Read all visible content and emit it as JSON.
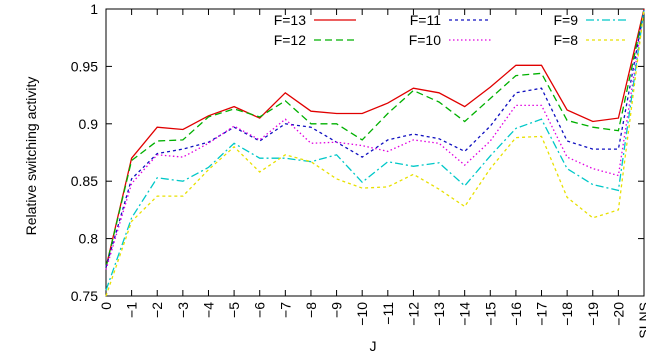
{
  "chart_data": {
    "type": "line",
    "xlabel": "J",
    "ylabel": "Relative switching activity",
    "ylim": [
      0.75,
      1.0
    ],
    "yticks": [
      "0.75",
      "0.8",
      "0.85",
      "0.9",
      "0.95",
      "1"
    ],
    "ytick_values": [
      0.75,
      0.8,
      0.85,
      0.9,
      0.95,
      1.0
    ],
    "categories": [
      "0",
      "−1",
      "−2",
      "−3",
      "−4",
      "−5",
      "−6",
      "−7",
      "−8",
      "−9",
      "−10",
      "−11",
      "−12",
      "−13",
      "−14",
      "−15",
      "−16",
      "−17",
      "−18",
      "−19",
      "−20",
      "SLNS"
    ],
    "grid": false,
    "legend_position": "top-right",
    "series": [
      {
        "name": "F=13",
        "color": "#e00000",
        "dash": "",
        "values": [
          0.775,
          0.87,
          0.897,
          0.895,
          0.907,
          0.915,
          0.905,
          0.927,
          0.911,
          0.909,
          0.909,
          0.918,
          0.931,
          0.927,
          0.915,
          0.932,
          0.951,
          0.951,
          0.912,
          0.902,
          0.905,
          1.0
        ]
      },
      {
        "name": "F=12",
        "color": "#00b000",
        "dash": "7,4",
        "values": [
          0.775,
          0.868,
          0.885,
          0.886,
          0.906,
          0.913,
          0.906,
          0.92,
          0.9,
          0.9,
          0.886,
          0.909,
          0.929,
          0.919,
          0.902,
          0.922,
          0.942,
          0.944,
          0.903,
          0.897,
          0.894,
          0.999
        ]
      },
      {
        "name": "F=11",
        "color": "#1010c0",
        "dash": "3,3",
        "values": [
          0.775,
          0.852,
          0.874,
          0.878,
          0.884,
          0.897,
          0.885,
          0.9,
          0.897,
          0.884,
          0.871,
          0.886,
          0.891,
          0.887,
          0.876,
          0.898,
          0.927,
          0.931,
          0.885,
          0.878,
          0.878,
          0.999
        ]
      },
      {
        "name": "F=10",
        "color": "#e000e0",
        "dash": "1.5,2.5",
        "values": [
          0.773,
          0.848,
          0.873,
          0.871,
          0.883,
          0.898,
          0.886,
          0.904,
          0.883,
          0.884,
          0.881,
          0.876,
          0.886,
          0.883,
          0.864,
          0.885,
          0.916,
          0.916,
          0.871,
          0.861,
          0.855,
          0.999
        ]
      },
      {
        "name": "F=9",
        "color": "#00c8c8",
        "dash": "8,3,2,3",
        "values": [
          0.755,
          0.818,
          0.853,
          0.85,
          0.862,
          0.883,
          0.87,
          0.87,
          0.867,
          0.873,
          0.849,
          0.867,
          0.863,
          0.866,
          0.846,
          0.872,
          0.896,
          0.904,
          0.861,
          0.847,
          0.842,
          0.999
        ]
      },
      {
        "name": "F=8",
        "color": "#e8e000",
        "dash": "3,3",
        "values": [
          0.75,
          0.815,
          0.837,
          0.837,
          0.86,
          0.88,
          0.858,
          0.873,
          0.867,
          0.852,
          0.844,
          0.845,
          0.856,
          0.843,
          0.828,
          0.861,
          0.888,
          0.889,
          0.836,
          0.818,
          0.825,
          0.999
        ]
      }
    ]
  }
}
